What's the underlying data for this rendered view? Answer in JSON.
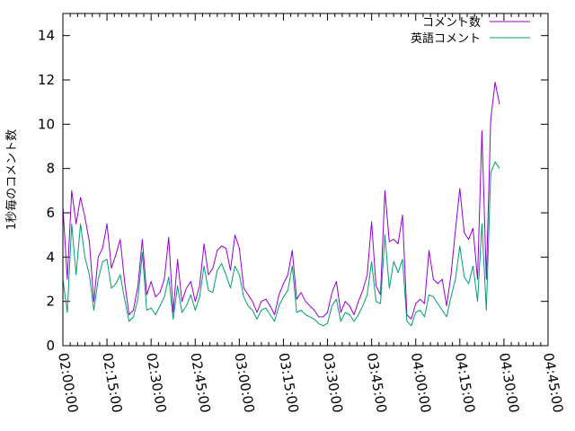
{
  "chart_data": {
    "type": "line",
    "title": "",
    "xlabel": "",
    "ylabel": "1秒毎のコメント数",
    "xlim": [
      "02:00:00",
      "04:45:00"
    ],
    "ylim": [
      0,
      15
    ],
    "grid": false,
    "legend_position": "top-right",
    "x_ticks": [
      "02:00:00",
      "02:15:00",
      "02:30:00",
      "02:45:00",
      "03:00:00",
      "03:15:00",
      "03:30:00",
      "03:45:00",
      "04:00:00",
      "04:15:00",
      "04:30:00",
      "04:45:00"
    ],
    "y_ticks": [
      0,
      2,
      4,
      6,
      8,
      10,
      12,
      14
    ],
    "x_step_seconds": 90,
    "x_start": "02:00:00",
    "series": [
      {
        "name": "コメント数",
        "color": "#9400d3",
        "values": [
          6.3,
          3.0,
          7.0,
          5.5,
          6.7,
          5.8,
          4.7,
          2.0,
          4.0,
          4.4,
          5.5,
          3.5,
          4.1,
          4.8,
          2.9,
          1.4,
          1.6,
          2.7,
          4.8,
          2.3,
          2.9,
          2.2,
          2.4,
          3.0,
          4.9,
          1.5,
          3.9,
          2.0,
          2.6,
          2.9,
          2.0,
          2.7,
          4.6,
          3.2,
          3.5,
          4.3,
          4.5,
          4.4,
          3.4,
          5.0,
          4.4,
          2.6,
          2.3,
          2.0,
          1.5,
          2.0,
          2.1,
          1.8,
          1.4,
          2.3,
          2.8,
          3.2,
          4.3,
          2.1,
          2.4,
          2.0,
          1.8,
          1.6,
          1.3,
          1.3,
          1.5,
          2.4,
          2.9,
          1.5,
          2.0,
          1.8,
          1.4,
          2.0,
          2.5,
          3.2,
          5.6,
          2.7,
          2.3,
          7.0,
          4.7,
          4.8,
          4.6,
          5.9,
          1.4,
          1.2,
          1.9,
          2.1,
          1.9,
          4.3,
          3.0,
          2.8,
          3.0,
          1.8,
          3.2,
          5.2,
          7.1,
          5.1,
          4.8,
          5.3,
          3.0,
          9.7,
          3.0,
          10.2,
          11.9,
          10.9
        ]
      },
      {
        "name": "英語コメント",
        "color": "#009e73",
        "values": [
          3.0,
          1.5,
          5.5,
          3.2,
          5.5,
          4.0,
          3.2,
          1.6,
          3.0,
          3.8,
          3.9,
          2.6,
          2.8,
          3.2,
          2.1,
          1.1,
          1.3,
          2.1,
          4.2,
          1.6,
          1.7,
          1.4,
          1.8,
          2.2,
          3.1,
          1.2,
          2.7,
          1.5,
          1.8,
          2.3,
          1.6,
          2.2,
          3.6,
          2.5,
          2.4,
          3.4,
          3.7,
          3.2,
          2.6,
          3.6,
          3.2,
          2.2,
          1.8,
          1.6,
          1.2,
          1.6,
          1.7,
          1.4,
          1.1,
          1.8,
          2.2,
          2.5,
          3.6,
          1.5,
          1.6,
          1.4,
          1.3,
          1.2,
          1.0,
          0.9,
          1.0,
          1.8,
          2.1,
          1.1,
          1.5,
          1.4,
          1.1,
          1.4,
          1.8,
          2.3,
          3.8,
          2.0,
          1.9,
          5.0,
          2.6,
          3.8,
          3.3,
          3.9,
          1.1,
          0.9,
          1.5,
          1.6,
          1.3,
          2.3,
          2.2,
          1.9,
          1.6,
          1.3,
          2.2,
          3.0,
          4.5,
          3.1,
          2.8,
          3.6,
          2.0,
          5.5,
          1.6,
          7.8,
          8.3,
          8.0
        ]
      }
    ]
  }
}
